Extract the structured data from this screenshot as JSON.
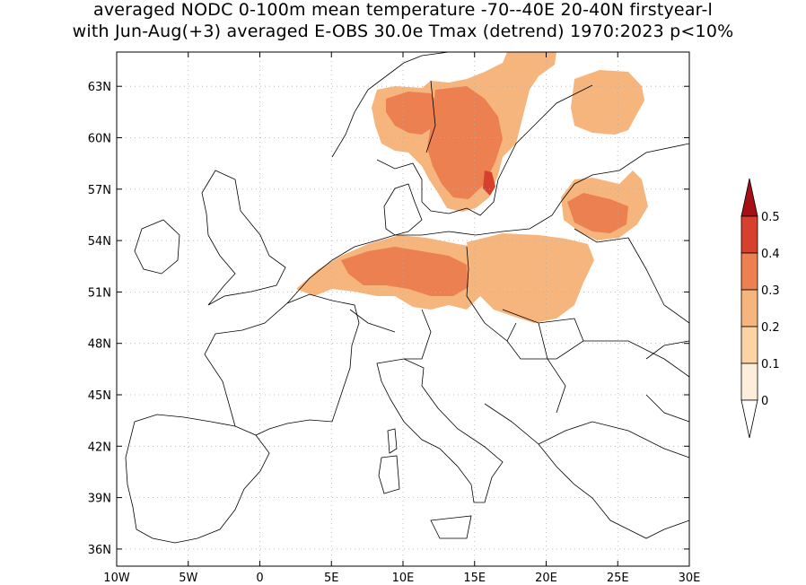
{
  "title": {
    "line1": "averaged NODC 0-100m mean temperature -70--40E 20-40N firstyear-l",
    "line2": "with Jun-Aug(+3) averaged E-OBS 30.0e Tmax (detrend) 1970:2023 p<10%"
  },
  "map": {
    "lon_range": [
      -10,
      30
    ],
    "lat_range": [
      35,
      65
    ],
    "lat_ticks": [
      {
        "value": 63,
        "label": "63N"
      },
      {
        "value": 60,
        "label": "60N"
      },
      {
        "value": 57,
        "label": "57N"
      },
      {
        "value": 54,
        "label": "54N"
      },
      {
        "value": 51,
        "label": "51N"
      },
      {
        "value": 48,
        "label": "48N"
      },
      {
        "value": 45,
        "label": "45N"
      },
      {
        "value": 42,
        "label": "42N"
      },
      {
        "value": 39,
        "label": "39N"
      },
      {
        "value": 36,
        "label": "36N"
      }
    ],
    "lon_ticks": [
      {
        "value": -10,
        "label": "10W"
      },
      {
        "value": -5,
        "label": "5W"
      },
      {
        "value": 0,
        "label": "0"
      },
      {
        "value": 5,
        "label": "5E"
      },
      {
        "value": 10,
        "label": "10E"
      },
      {
        "value": 15,
        "label": "15E"
      },
      {
        "value": 20,
        "label": "20E"
      },
      {
        "value": 25,
        "label": "25E"
      },
      {
        "value": 30,
        "label": "30E"
      }
    ],
    "grid": true
  },
  "colorbar": {
    "levels": [
      "0.5",
      "0.4",
      "0.3",
      "0.2",
      "0.1",
      "0"
    ],
    "colors": {
      "over": "#a50f15",
      "c45": "#d7402c",
      "c35": "#ec8050",
      "c25": "#f7b57e",
      "c15": "#fdd3a3",
      "c05": "#fdeedb",
      "under": "#ffffff"
    }
  },
  "field": {
    "description_free": true,
    "regions": [
      {
        "name": "scandinavia",
        "level": "c25"
      },
      {
        "name": "sweden-core",
        "level": "c35"
      },
      {
        "name": "norway-west",
        "level": "c35"
      },
      {
        "name": "sweden-se",
        "level": "c45"
      },
      {
        "name": "finland-russia",
        "level": "c25"
      },
      {
        "name": "baltic",
        "level": "c25"
      },
      {
        "name": "baltic-core",
        "level": "c35"
      },
      {
        "name": "germany-benelux",
        "level": "c25"
      },
      {
        "name": "germany-core",
        "level": "c35"
      },
      {
        "name": "poland",
        "level": "c25"
      }
    ]
  }
}
